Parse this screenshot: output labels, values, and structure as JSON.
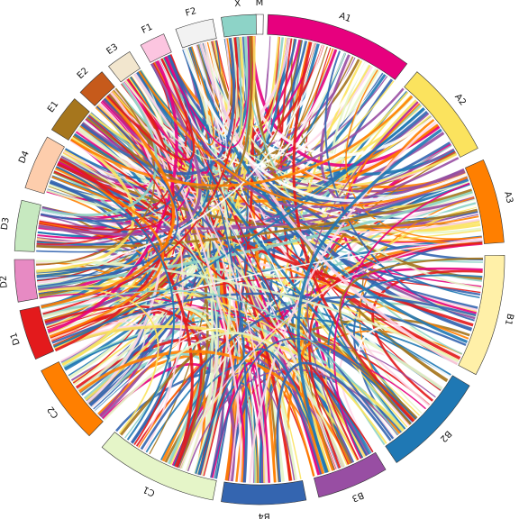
{
  "diagram": {
    "type": "chord",
    "segments": [
      {
        "id": "M",
        "label": "M",
        "color": "#ffffff"
      },
      {
        "id": "A1",
        "label": "A1",
        "color": "#e7007e"
      },
      {
        "id": "A2",
        "label": "A2",
        "color": "#fbe35e"
      },
      {
        "id": "A3",
        "label": "A3",
        "color": "#ff7f00"
      },
      {
        "id": "B1",
        "label": "B1",
        "color": "#fff0a8"
      },
      {
        "id": "B2",
        "label": "B2",
        "color": "#1f78b4"
      },
      {
        "id": "B3",
        "label": "B3",
        "color": "#984ea3"
      },
      {
        "id": "B4",
        "label": "B4",
        "color": "#3465b0"
      },
      {
        "id": "C1",
        "label": "C1",
        "color": "#e5f5c8"
      },
      {
        "id": "C2",
        "label": "C2",
        "color": "#ff7f00"
      },
      {
        "id": "D1",
        "label": "D1",
        "color": "#e31a1c"
      },
      {
        "id": "D2",
        "label": "D2",
        "color": "#e78ac3"
      },
      {
        "id": "D3",
        "label": "D3",
        "color": "#c7e9c0"
      },
      {
        "id": "D4",
        "label": "D4",
        "color": "#fdcdac"
      },
      {
        "id": "E1",
        "label": "E1",
        "color": "#a6761d"
      },
      {
        "id": "E2",
        "label": "E2",
        "color": "#c65a1b"
      },
      {
        "id": "E3",
        "label": "E3",
        "color": "#f2e6ce"
      },
      {
        "id": "F1",
        "label": "F1",
        "color": "#fcc5e0"
      },
      {
        "id": "F2",
        "label": "F2",
        "color": "#f2f2f2"
      },
      {
        "id": "X",
        "label": "X",
        "color": "#8dd3c7"
      }
    ],
    "ribbon_colors": [
      "#e7007e",
      "#fbe35e",
      "#ff7f00",
      "#1f78b4",
      "#984ea3",
      "#fdd6e8",
      "#e5f5c8",
      "#a6761d",
      "#e31a1c",
      "#8dd3c7",
      "#ffffff",
      "#3465b0"
    ]
  }
}
